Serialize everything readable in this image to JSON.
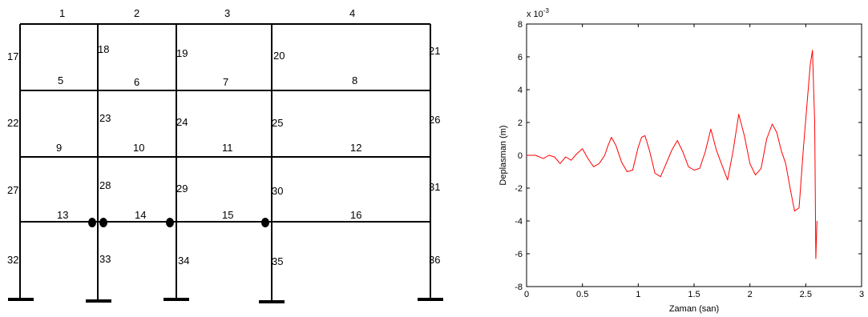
{
  "frame": {
    "member_labels": [
      "1",
      "2",
      "3",
      "4",
      "5",
      "6",
      "7",
      "8",
      "9",
      "10",
      "11",
      "12",
      "13",
      "14",
      "15",
      "16",
      "17",
      "18",
      "19",
      "20",
      "21",
      "22",
      "23",
      "24",
      "25",
      "26",
      "27",
      "28",
      "29",
      "30",
      "31",
      "32",
      "33",
      "34",
      "35",
      "36"
    ],
    "line_color": "#000000"
  },
  "chart_data": {
    "type": "line",
    "title": "",
    "xlabel": "Zaman (san)",
    "ylabel": "Deplasman (m)",
    "y_exponent_label": "x 10",
    "y_exponent_power": "-3",
    "xlim": [
      0,
      3
    ],
    "ylim": [
      -8,
      8
    ],
    "x_ticks": [
      "0",
      "0.5",
      "1",
      "1.5",
      "2",
      "2.5",
      "3"
    ],
    "y_ticks": [
      "8",
      "6",
      "4",
      "2",
      "0",
      "-2",
      "-4",
      "-6",
      "-8"
    ],
    "grid": false,
    "series": [
      {
        "color": "#ff0000",
        "x": [
          0,
          0.08,
          0.15,
          0.2,
          0.25,
          0.3,
          0.35,
          0.4,
          0.45,
          0.5,
          0.55,
          0.6,
          0.65,
          0.7,
          0.73,
          0.76,
          0.8,
          0.85,
          0.9,
          0.95,
          1.0,
          1.03,
          1.06,
          1.1,
          1.15,
          1.2,
          1.25,
          1.3,
          1.35,
          1.4,
          1.45,
          1.5,
          1.55,
          1.6,
          1.65,
          1.7,
          1.75,
          1.8,
          1.85,
          1.9,
          1.95,
          2.0,
          2.05,
          2.1,
          2.15,
          2.2,
          2.24,
          2.28,
          2.32,
          2.36,
          2.4,
          2.44,
          2.48,
          2.51,
          2.54,
          2.56,
          2.58,
          2.59,
          2.6
        ],
        "y": [
          0,
          0,
          -0.2,
          0,
          -0.1,
          -0.5,
          -0.1,
          -0.3,
          0.1,
          0.4,
          -0.2,
          -0.7,
          -0.5,
          0,
          0.6,
          1.1,
          0.6,
          -0.4,
          -1.0,
          -0.9,
          0.5,
          1.1,
          1.2,
          0.3,
          -1.1,
          -1.3,
          -0.5,
          0.3,
          0.9,
          0.2,
          -0.7,
          -0.9,
          -0.8,
          0.2,
          1.6,
          0.3,
          -0.6,
          -1.5,
          0.3,
          2.5,
          1.2,
          -0.5,
          -1.2,
          -0.8,
          1.0,
          1.9,
          1.4,
          0.3,
          -0.5,
          -2.0,
          -3.4,
          -3.2,
          0.5,
          3.0,
          5.5,
          6.4,
          2.0,
          -6.3,
          -4.0
        ]
      }
    ]
  }
}
